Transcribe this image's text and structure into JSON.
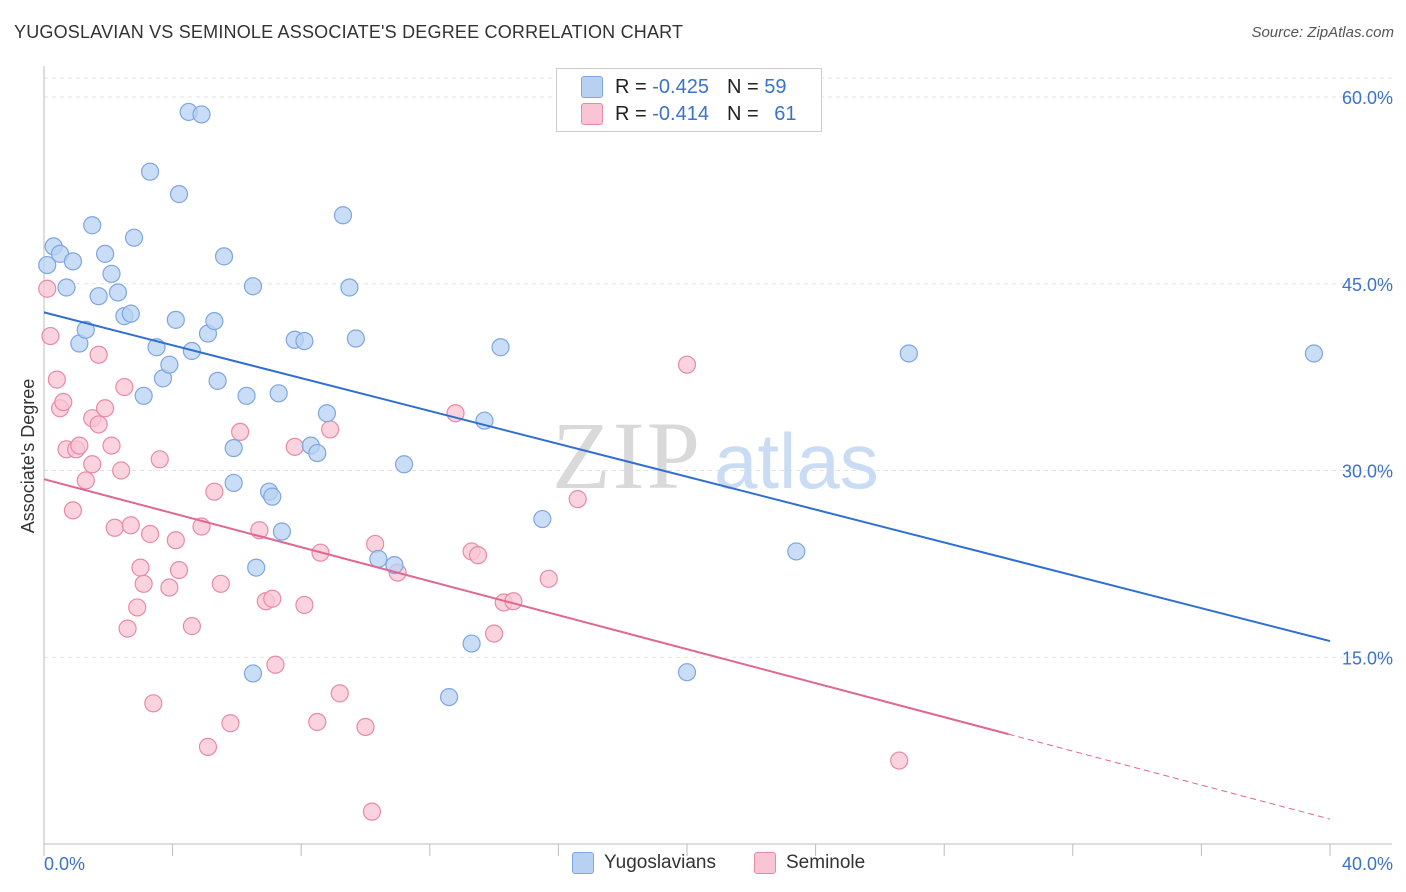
{
  "title": "YUGOSLAVIAN VS SEMINOLE ASSOCIATE'S DEGREE CORRELATION CHART",
  "source": "Source: ZipAtlas.com",
  "legend": {
    "rows": [
      {
        "r_label": "R = ",
        "r_value": "-0.425",
        "n_label": "N = ",
        "n_value": "59",
        "color": "#b8d1f3",
        "border": "#7ea6e0"
      },
      {
        "r_label": "R = ",
        "r_value": "-0.414",
        "n_label": "N = ",
        "n_value": "61",
        "color": "#f9c4d3",
        "border": "#e88aa6"
      }
    ]
  },
  "bottom_legend": {
    "yugoslavians": "Yugoslavians",
    "seminole": "Seminole"
  },
  "watermark": {
    "zip": "ZIP",
    "atlas": "atlas"
  },
  "colors": {
    "blue_fill": "#b8d1f3",
    "blue_stroke": "#7ea6e0",
    "blue_line": "#2f6fcf",
    "pink_fill": "#f9c4d3",
    "pink_stroke": "#e88aa6",
    "pink_line": "#e06790",
    "tick_label": "#3a73c9"
  },
  "chart_data": {
    "type": "scatter",
    "ylabel": "Associate's Degree",
    "xlabel": "",
    "xlim": [
      0,
      40
    ],
    "ylim": [
      0,
      60
    ],
    "x_tick_labels": [
      {
        "value": 0,
        "label": "0.0%"
      },
      {
        "value": 40,
        "label": "40.0%"
      }
    ],
    "y_tick_labels": [
      {
        "value": 15,
        "label": "15.0%"
      },
      {
        "value": 30,
        "label": "30.0%"
      },
      {
        "value": 45,
        "label": "45.0%"
      },
      {
        "value": 60,
        "label": "60.0%"
      }
    ],
    "grid": "horizontal-dashed",
    "legend_position": "top-center",
    "series": [
      {
        "name": "Yugoslavians",
        "color": "#b8d1f3",
        "trend": {
          "x0": 0,
          "y0": 42.7,
          "x1": 40,
          "y1": 16.3,
          "dashed_from": null
        },
        "points": [
          [
            0.1,
            46.5
          ],
          [
            0.3,
            48.0
          ],
          [
            0.5,
            47.4
          ],
          [
            0.7,
            44.7
          ],
          [
            0.9,
            46.8
          ],
          [
            1.1,
            40.2
          ],
          [
            1.3,
            41.3
          ],
          [
            1.5,
            49.7
          ],
          [
            1.7,
            44.0
          ],
          [
            1.9,
            47.4
          ],
          [
            2.1,
            45.8
          ],
          [
            2.3,
            44.3
          ],
          [
            2.5,
            42.4
          ],
          [
            2.7,
            42.6
          ],
          [
            2.8,
            48.7
          ],
          [
            3.1,
            36.0
          ],
          [
            3.3,
            54.0
          ],
          [
            3.5,
            39.9
          ],
          [
            3.7,
            37.4
          ],
          [
            3.9,
            38.5
          ],
          [
            4.1,
            42.1
          ],
          [
            4.2,
            52.2
          ],
          [
            4.6,
            39.6
          ],
          [
            4.5,
            58.8
          ],
          [
            4.9,
            58.6
          ],
          [
            5.1,
            41.0
          ],
          [
            5.3,
            42.0
          ],
          [
            5.4,
            37.2
          ],
          [
            5.6,
            47.2
          ],
          [
            5.9,
            31.8
          ],
          [
            5.9,
            29.0
          ],
          [
            6.3,
            36.0
          ],
          [
            6.5,
            44.8
          ],
          [
            6.6,
            22.2
          ],
          [
            6.5,
            13.7
          ],
          [
            7.0,
            28.3
          ],
          [
            7.1,
            27.9
          ],
          [
            7.3,
            36.2
          ],
          [
            7.4,
            25.1
          ],
          [
            7.8,
            40.5
          ],
          [
            8.3,
            32.0
          ],
          [
            8.5,
            31.4
          ],
          [
            8.8,
            34.6
          ],
          [
            8.1,
            40.4
          ],
          [
            9.3,
            50.5
          ],
          [
            9.5,
            44.7
          ],
          [
            9.7,
            40.6
          ],
          [
            10.4,
            22.9
          ],
          [
            10.9,
            22.4
          ],
          [
            11.2,
            30.5
          ],
          [
            12.6,
            11.8
          ],
          [
            13.3,
            16.1
          ],
          [
            13.7,
            34.0
          ],
          [
            14.2,
            39.9
          ],
          [
            15.5,
            26.1
          ],
          [
            20.0,
            13.8
          ],
          [
            23.4,
            23.5
          ],
          [
            26.9,
            39.4
          ],
          [
            39.5,
            39.4
          ]
        ]
      },
      {
        "name": "Seminole",
        "color": "#f9c4d3",
        "trend": {
          "x0": 0,
          "y0": 29.3,
          "x1": 40,
          "y1": 2.0,
          "dashed_from": 30.0
        },
        "points": [
          [
            0.1,
            44.6
          ],
          [
            0.2,
            40.8
          ],
          [
            0.4,
            37.3
          ],
          [
            0.5,
            35.0
          ],
          [
            0.6,
            35.5
          ],
          [
            0.7,
            31.7
          ],
          [
            0.9,
            26.8
          ],
          [
            1.0,
            31.7
          ],
          [
            1.1,
            32.0
          ],
          [
            1.3,
            29.2
          ],
          [
            1.5,
            30.5
          ],
          [
            1.5,
            34.2
          ],
          [
            1.7,
            33.7
          ],
          [
            1.7,
            39.3
          ],
          [
            1.9,
            35.0
          ],
          [
            2.1,
            32.0
          ],
          [
            2.2,
            25.4
          ],
          [
            2.4,
            30.0
          ],
          [
            2.5,
            36.7
          ],
          [
            2.6,
            17.3
          ],
          [
            2.7,
            25.6
          ],
          [
            2.9,
            19.0
          ],
          [
            3.0,
            22.2
          ],
          [
            3.1,
            20.9
          ],
          [
            3.3,
            24.9
          ],
          [
            3.4,
            11.3
          ],
          [
            3.6,
            30.9
          ],
          [
            3.9,
            20.6
          ],
          [
            4.1,
            24.4
          ],
          [
            4.2,
            22.0
          ],
          [
            4.6,
            17.5
          ],
          [
            4.9,
            25.5
          ],
          [
            5.1,
            7.8
          ],
          [
            5.3,
            28.3
          ],
          [
            5.5,
            20.9
          ],
          [
            5.8,
            9.7
          ],
          [
            6.1,
            33.1
          ],
          [
            6.7,
            25.2
          ],
          [
            6.9,
            19.5
          ],
          [
            7.1,
            19.7
          ],
          [
            7.2,
            14.4
          ],
          [
            7.8,
            31.9
          ],
          [
            8.1,
            19.2
          ],
          [
            8.5,
            9.8
          ],
          [
            8.6,
            23.4
          ],
          [
            8.9,
            33.3
          ],
          [
            9.2,
            12.1
          ],
          [
            10.0,
            9.4
          ],
          [
            10.2,
            2.6
          ],
          [
            10.3,
            24.1
          ],
          [
            11.0,
            21.8
          ],
          [
            12.8,
            34.6
          ],
          [
            13.3,
            23.5
          ],
          [
            13.5,
            23.2
          ],
          [
            14.0,
            16.9
          ],
          [
            14.3,
            19.4
          ],
          [
            14.6,
            19.5
          ],
          [
            15.7,
            21.3
          ],
          [
            16.6,
            27.7
          ],
          [
            20.0,
            38.5
          ],
          [
            26.6,
            6.7
          ]
        ]
      }
    ]
  }
}
